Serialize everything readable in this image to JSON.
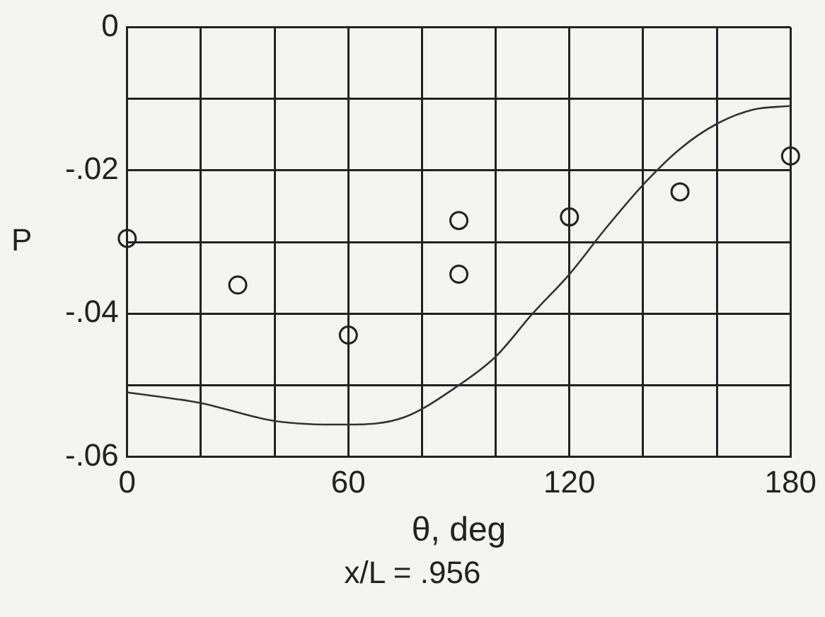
{
  "chart_data": {
    "type": "scatter",
    "xlabel": "θ, deg",
    "ylabel": "P",
    "annotations": [
      "x/L = .956"
    ],
    "xlim": [
      0,
      180
    ],
    "xticks": [
      0,
      {
        "value": 20,
        "label": null
      },
      {
        "value": 40,
        "label": null
      },
      60,
      {
        "value": 80,
        "label": null
      },
      {
        "value": 100,
        "label": null
      },
      120,
      {
        "value": 140,
        "label": null
      },
      {
        "value": 160,
        "label": null
      },
      180
    ],
    "ylim": [
      -0.06,
      0
    ],
    "yticks": [
      {
        "value": -0.06,
        "label": "-.06"
      },
      {
        "value": -0.05,
        "label": null
      },
      {
        "value": -0.04,
        "label": "-.04"
      },
      {
        "value": -0.03,
        "label": null
      },
      {
        "value": -0.02,
        "label": "-.02"
      },
      {
        "value": -0.01,
        "label": null
      },
      0
    ],
    "grid": true,
    "legend": false,
    "series": [
      {
        "color": "#222222",
        "marker": "circle",
        "x": [
          0,
          30,
          60,
          90,
          90,
          120,
          150,
          180
        ],
        "values": [
          -0.0295,
          -0.036,
          -0.043,
          -0.027,
          -0.0345,
          -0.0265,
          -0.023,
          -0.018
        ]
      },
      {
        "type": "line",
        "color": "#333333",
        "marker": "none",
        "x": [
          0,
          20,
          40,
          60,
          75,
          90,
          100,
          110,
          120,
          130,
          140,
          150,
          160,
          170,
          180
        ],
        "values": [
          -0.051,
          -0.0525,
          -0.055,
          -0.0555,
          -0.0545,
          -0.05,
          -0.046,
          -0.04,
          -0.0345,
          -0.028,
          -0.022,
          -0.017,
          -0.0135,
          -0.0115,
          -0.011
        ]
      }
    ]
  }
}
